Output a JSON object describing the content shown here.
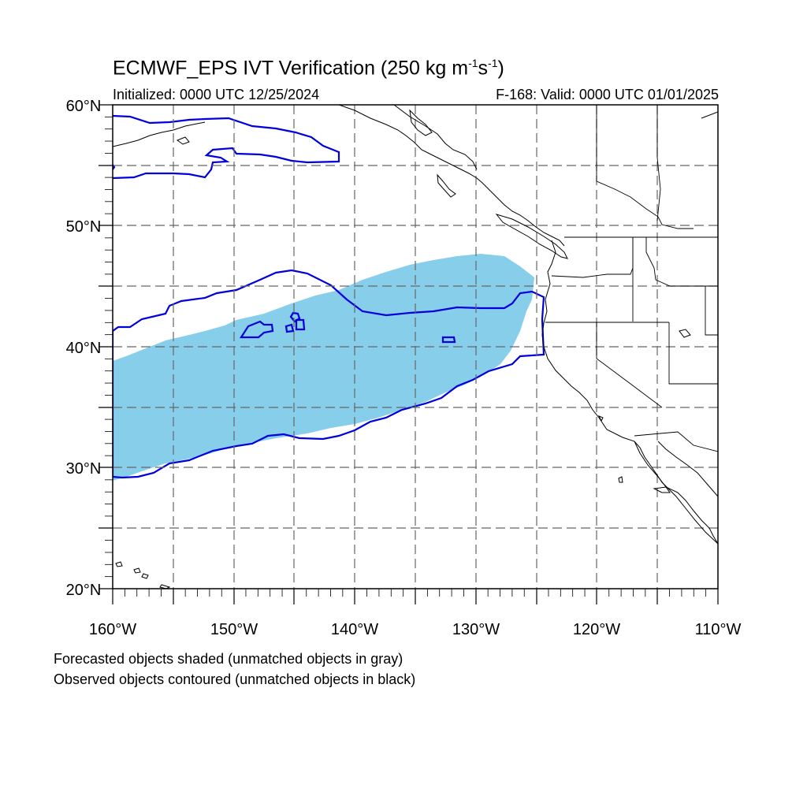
{
  "header": {
    "title_main": "ECMWF_EPS IVT Verification (250 kg m",
    "title_exp1": "-1",
    "title_mid": "s",
    "title_exp2": "-1",
    "title_end": ")",
    "initialized": "Initialized: 0000 UTC 12/25/2024",
    "valid": "F-168: Valid: 0000 UTC 01/01/2025"
  },
  "map": {
    "lat_labels": [
      "60°N",
      "50°N",
      "40°N",
      "30°N",
      "20°N"
    ],
    "lon_labels": [
      "160°W",
      "150°W",
      "140°W",
      "130°W",
      "120°W",
      "110°W"
    ],
    "lat_range": [
      20,
      60
    ],
    "lon_range": [
      -160,
      -110
    ],
    "grid": "dashed every 5°",
    "forecast_fill_color": "#87CEEB",
    "observed_contour_color": "#0000DD",
    "coast_color": "#000000"
  },
  "legend": {
    "line1": "Forecasted objects shaded (unmatched objects in gray)",
    "line2": "Observed objects contoured (unmatched objects in black)"
  }
}
